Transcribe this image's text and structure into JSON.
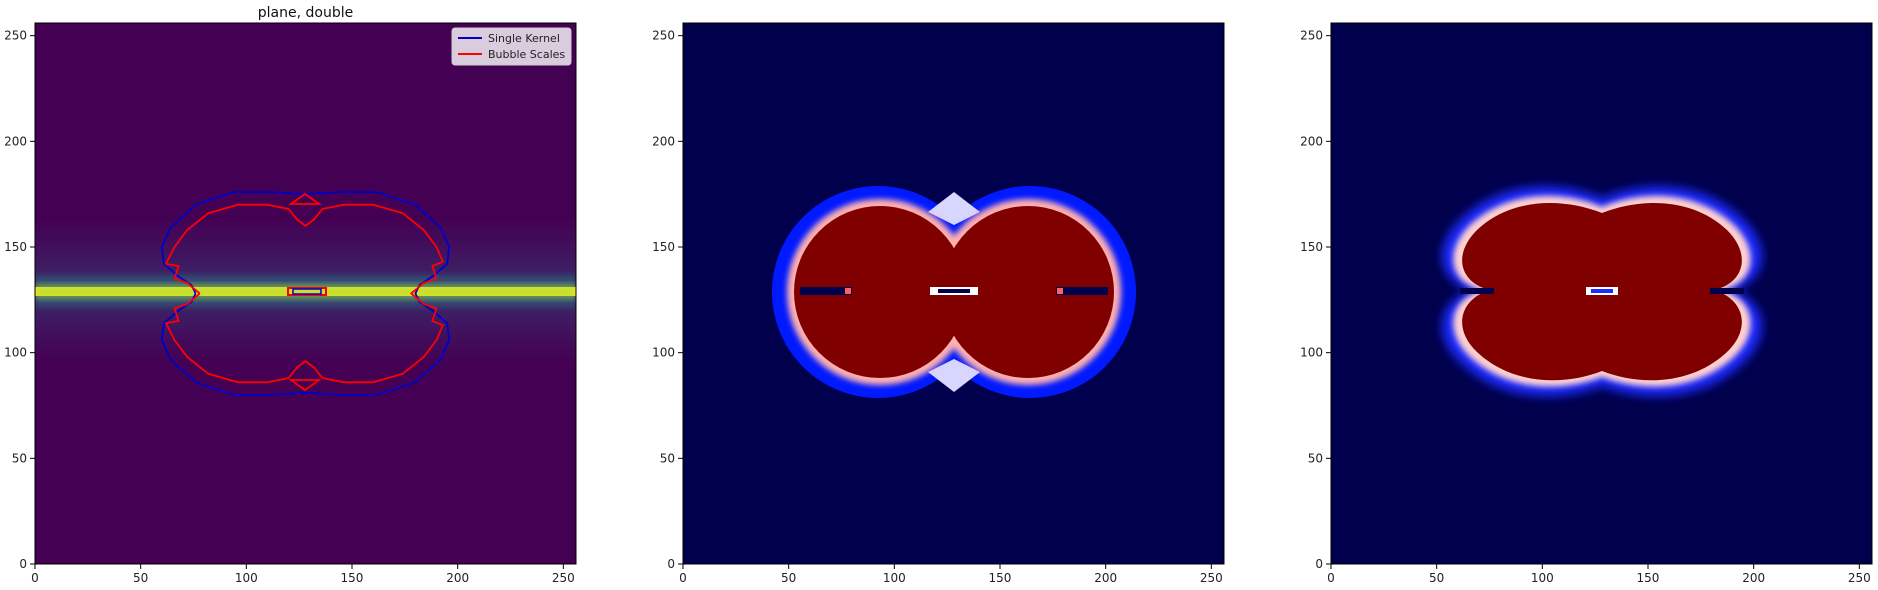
{
  "chart_data": [
    {
      "type": "heatmap",
      "title": "plane, double",
      "xlim": [
        0,
        256
      ],
      "ylim": [
        0,
        256
      ],
      "xticks": [
        0,
        50,
        100,
        150,
        200,
        250
      ],
      "yticks": [
        0,
        50,
        100,
        150,
        200,
        250
      ],
      "colormap": "viridis",
      "background_color": "#440154",
      "band": {
        "y": 128,
        "color": "#fde725"
      },
      "series": [
        {
          "name": "Single Kernel",
          "color": "#0000cc",
          "contour": [
            [
              76,
              128
            ],
            [
              74,
              132
            ],
            [
              68,
              136
            ],
            [
              61,
              142
            ],
            [
              60,
              150
            ],
            [
              64,
              159
            ],
            [
              76,
              170
            ],
            [
              94,
              176
            ],
            [
              112,
              176
            ],
            [
              128,
              175
            ],
            [
              144,
              176
            ],
            [
              162,
              176
            ],
            [
              180,
              170
            ],
            [
              192,
              159
            ],
            [
              196,
              150
            ],
            [
              195,
              142
            ],
            [
              188,
              136
            ],
            [
              182,
              132
            ],
            [
              180,
              128
            ],
            [
              182,
              124
            ],
            [
              188,
              120
            ],
            [
              195,
              114
            ],
            [
              196,
              106
            ],
            [
              192,
              97
            ],
            [
              180,
              86
            ],
            [
              162,
              80
            ],
            [
              144,
              80
            ],
            [
              128,
              81
            ],
            [
              112,
              80
            ],
            [
              94,
              80
            ],
            [
              76,
              86
            ],
            [
              64,
              97
            ],
            [
              60,
              106
            ],
            [
              61,
              114
            ],
            [
              68,
              120
            ],
            [
              74,
              124
            ],
            [
              76,
              128
            ]
          ]
        },
        {
          "name": "Bubble Scales",
          "color": "#ff0000",
          "contour": [
            [
              78,
              128
            ],
            [
              72,
              133
            ],
            [
              66,
              135
            ],
            [
              68,
              141
            ],
            [
              62,
              142
            ],
            [
              66,
              150
            ],
            [
              72,
              158
            ],
            [
              82,
              166
            ],
            [
              96,
              170
            ],
            [
              110,
              170
            ],
            [
              120,
              168
            ],
            [
              124,
              163
            ],
            [
              128,
              160
            ],
            [
              132,
              163
            ],
            [
              136,
              168
            ],
            [
              146,
              170
            ],
            [
              160,
              170
            ],
            [
              174,
              166
            ],
            [
              184,
              158
            ],
            [
              190,
              150
            ],
            [
              193,
              143
            ],
            [
              188,
              141
            ],
            [
              190,
              135
            ],
            [
              184,
              133
            ],
            [
              178,
              128
            ],
            [
              184,
              123
            ],
            [
              190,
              121
            ],
            [
              188,
              115
            ],
            [
              193,
              113
            ],
            [
              190,
              106
            ],
            [
              184,
              98
            ],
            [
              174,
              90
            ],
            [
              160,
              86
            ],
            [
              146,
              86
            ],
            [
              136,
              88
            ],
            [
              132,
              93
            ],
            [
              128,
              96
            ],
            [
              124,
              93
            ],
            [
              120,
              88
            ],
            [
              110,
              86
            ],
            [
              96,
              86
            ],
            [
              82,
              90
            ],
            [
              72,
              98
            ],
            [
              66,
              106
            ],
            [
              62,
              114
            ],
            [
              68,
              115
            ],
            [
              66,
              121
            ],
            [
              72,
              123
            ],
            [
              78,
              128
            ]
          ]
        }
      ],
      "legend_position": "upper right"
    },
    {
      "type": "heatmap",
      "title": "",
      "xlim": [
        0,
        256
      ],
      "ylim": [
        0,
        256
      ],
      "xticks": [
        0,
        50,
        100,
        150,
        200,
        250
      ],
      "yticks": [
        0,
        50,
        100,
        150,
        200,
        250
      ],
      "colormap": "seismic",
      "background_color": "#00004c"
    },
    {
      "type": "heatmap",
      "title": "",
      "xlim": [
        0,
        256
      ],
      "ylim": [
        0,
        256
      ],
      "xticks": [
        0,
        50,
        100,
        150,
        200,
        250
      ],
      "yticks": [
        0,
        50,
        100,
        150,
        200,
        250
      ],
      "colormap": "seismic",
      "background_color": "#00004c"
    }
  ]
}
